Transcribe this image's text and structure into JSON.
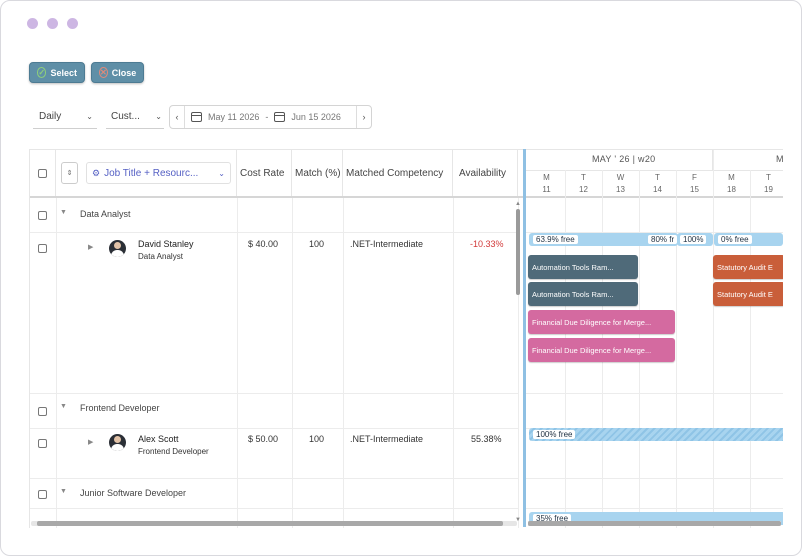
{
  "window": {
    "dots": [
      "dot",
      "dot",
      "dot"
    ]
  },
  "toolbar": {
    "select_label": "Select",
    "close_label": "Close"
  },
  "filters": {
    "view": "Daily",
    "custom": "Cust...",
    "start_date": "May 11 2026",
    "separator": "-",
    "end_date": "Jun 15 2026",
    "prev_icon": "chevron-left-icon",
    "next_icon": "chevron-right-icon"
  },
  "grid": {
    "headers": {
      "job_title": "Job Title + Resourc...",
      "cost_rate": "Cost Rate",
      "match": "Match (%)",
      "competency": "Matched Competency",
      "availability": "Availability"
    },
    "groups": [
      {
        "label": "Data Analyst",
        "resource": {
          "name": "David Stanley",
          "role": "Data Analyst",
          "cost_rate": "$ 40.00",
          "match": "100",
          "competency": ".NET-Intermediate",
          "availability": "-10.33%"
        }
      },
      {
        "label": "Frontend Developer",
        "resource": {
          "name": "Alex Scott",
          "role": "Frontend Developer",
          "cost_rate": "$ 50.00",
          "match": "100",
          "competency": ".NET-Intermediate",
          "availability": "55.38%"
        }
      },
      {
        "label": "Junior Software Developer"
      }
    ]
  },
  "gantt": {
    "months": [
      "MAY ' 26 | w20",
      "M"
    ],
    "days": [
      {
        "dow": "M",
        "date": "11"
      },
      {
        "dow": "T",
        "date": "12"
      },
      {
        "dow": "W",
        "date": "13"
      },
      {
        "dow": "T",
        "date": "14"
      },
      {
        "dow": "F",
        "date": "15"
      },
      {
        "dow": "M",
        "date": "18"
      },
      {
        "dow": "T",
        "date": "19"
      }
    ],
    "availability_row1": [
      "63.9% free",
      "80% fr",
      "100%",
      "0% free"
    ],
    "availability_row2": [
      "100% free"
    ],
    "availability_row3": [
      "35% free"
    ],
    "tasks": {
      "automation": "Automation Tools Ram...",
      "financial": "Financial Due Diligence for Merge...",
      "statutory": "Statutory Audit E"
    },
    "colors": {
      "dark": "#4f6a79",
      "pink": "#d46aa0",
      "orange": "#c95e3a",
      "avail": "#a8d4ef"
    }
  }
}
